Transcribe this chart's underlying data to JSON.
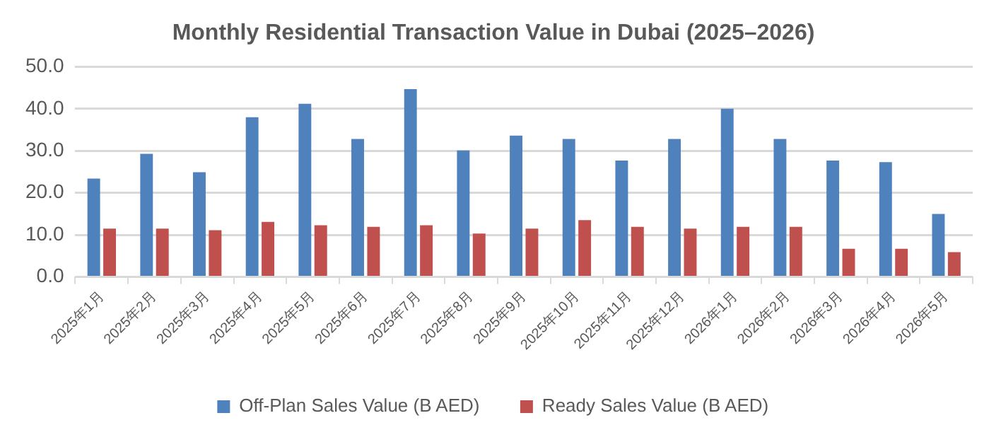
{
  "chart_data": {
    "type": "bar",
    "title": "Monthly Residential Transaction Value in Dubai (2025–2026)",
    "categories": [
      "2025年1月",
      "2025年2月",
      "2025年3月",
      "2025年4月",
      "2025年5月",
      "2025年6月",
      "2025年7月",
      "2025年8月",
      "2025年9月",
      "2025年10月",
      "2025年11月",
      "2025年12月",
      "2026年1月",
      "2026年2月",
      "2026年3月",
      "2026年4月",
      "2026年5月"
    ],
    "series": [
      {
        "name": "Off-Plan Sales Value (B AED)",
        "color": "#4f81bd",
        "values": [
          23.4,
          29.3,
          24.9,
          38.0,
          41.2,
          32.8,
          44.7,
          30.1,
          33.6,
          32.8,
          27.7,
          32.8,
          40.0,
          32.8,
          27.7,
          27.3,
          15.0
        ]
      },
      {
        "name": "Ready Sales Value (B AED)",
        "color": "#c0504d",
        "values": [
          11.5,
          11.5,
          11.1,
          13.1,
          12.3,
          11.9,
          12.3,
          10.3,
          11.5,
          13.5,
          11.9,
          11.5,
          11.9,
          11.9,
          6.7,
          6.7,
          5.9
        ]
      }
    ],
    "ylim": [
      0,
      50
    ],
    "yticks": [
      {
        "value": 0,
        "label": "0.0"
      },
      {
        "value": 10,
        "label": "10.0"
      },
      {
        "value": 20,
        "label": "20.0"
      },
      {
        "value": 30,
        "label": "30.0"
      },
      {
        "value": 40,
        "label": "40.0"
      },
      {
        "value": 50,
        "label": "50.0"
      }
    ],
    "grid": "y",
    "legend": "bottom"
  }
}
